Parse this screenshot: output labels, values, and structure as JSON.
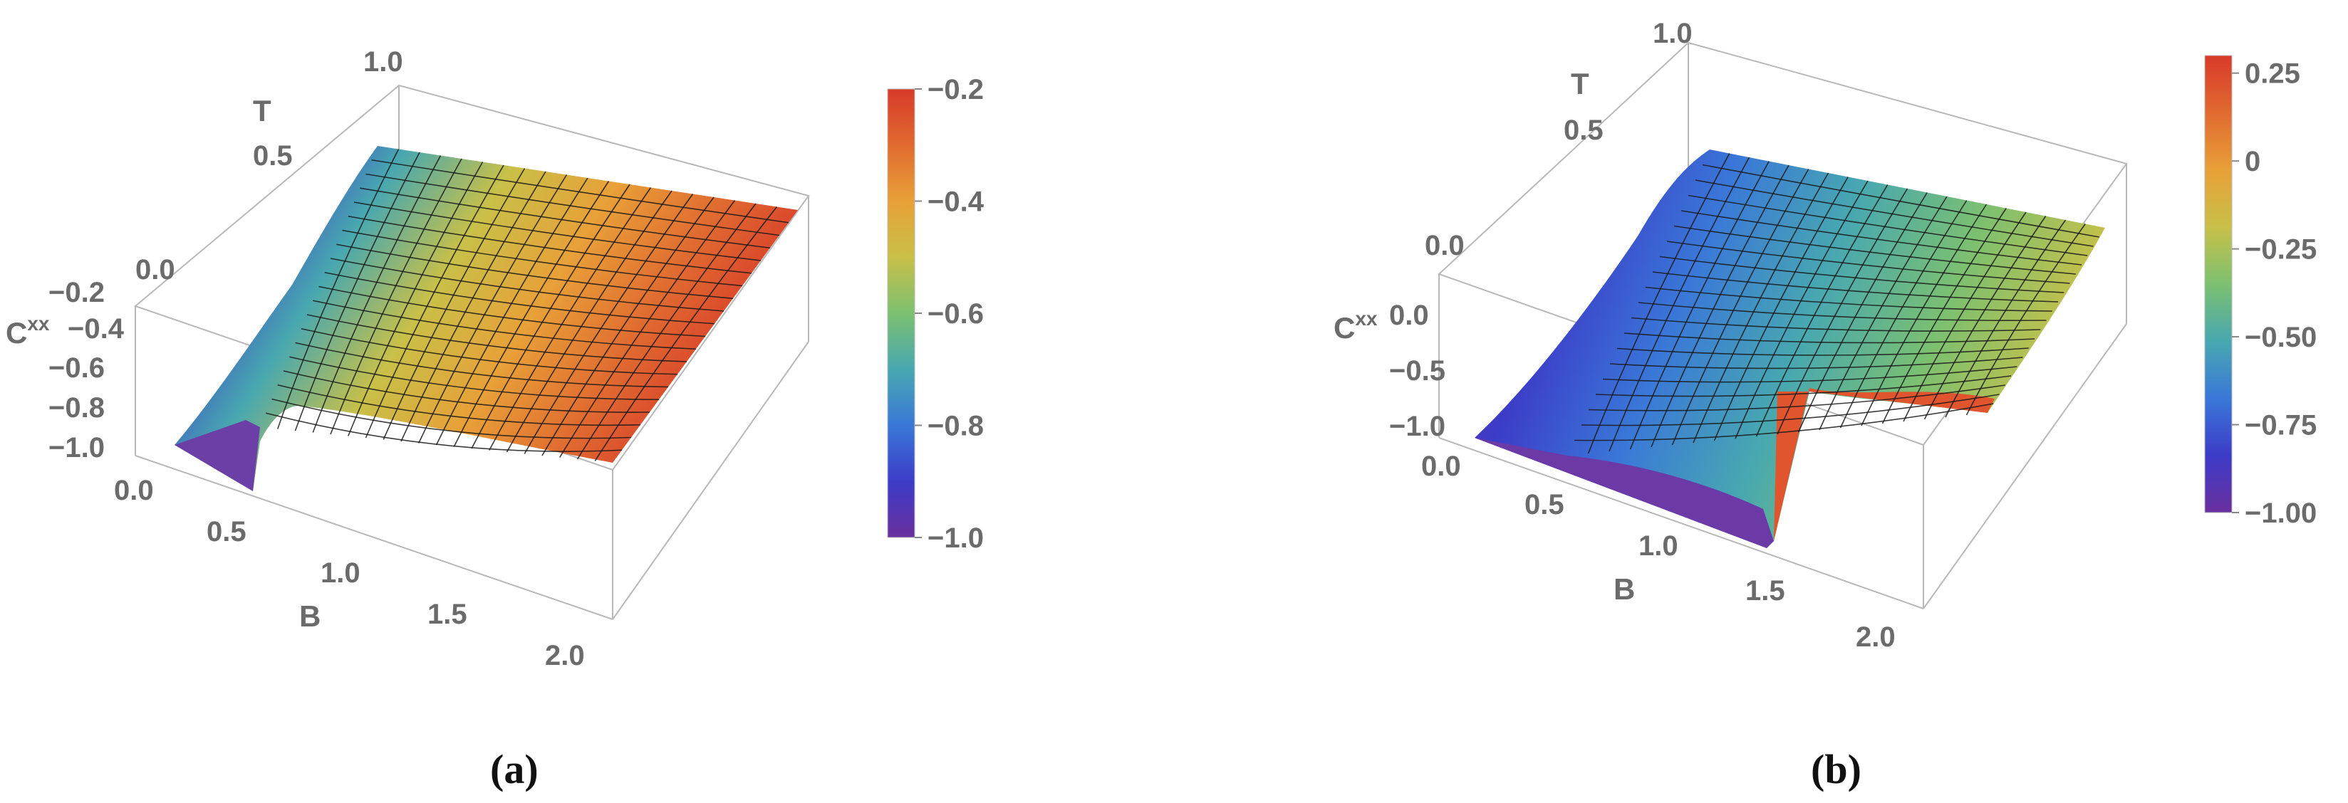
{
  "chart_data": [
    {
      "type": "surface3d",
      "panel_label": "(a)",
      "x_axis": {
        "label": "B",
        "ticks": [
          "0.0",
          "0.5",
          "1.0",
          "1.5",
          "2.0"
        ],
        "range": [
          0,
          2
        ]
      },
      "y_axis": {
        "label": "T",
        "ticks": [
          "0.0",
          "0.5",
          "1.0"
        ],
        "range": [
          0,
          1
        ]
      },
      "z_axis": {
        "label_main": "C",
        "label_sup": "xx",
        "ticks": [
          "-1.0",
          "-0.8",
          "-0.6",
          "-0.4",
          "-0.2"
        ],
        "range": [
          -1.0,
          -0.2
        ]
      },
      "colorbar": {
        "ticks": [
          "-1.0",
          "-0.8",
          "-0.6",
          "-0.4",
          "-0.2"
        ],
        "range": [
          -1.0,
          -0.2
        ],
        "colors": [
          "#6a2f9e",
          "#3c3cc8",
          "#3a78d8",
          "#48a8b0",
          "#7cc070",
          "#c8c048",
          "#e8a038",
          "#e06a30",
          "#d83a2a"
        ]
      },
      "features": {
        "singularity_B": 0.55,
        "min_value": -1.0,
        "max_value": -0.2
      }
    },
    {
      "type": "surface3d",
      "panel_label": "(b)",
      "x_axis": {
        "label": "B",
        "ticks": [
          "0.5",
          "1.0",
          "1.5",
          "2.0"
        ],
        "range": [
          0,
          2
        ]
      },
      "y_axis": {
        "label": "T",
        "ticks": [
          "0.0",
          "0.5",
          "1.0"
        ],
        "range": [
          0,
          1
        ]
      },
      "z_axis": {
        "label_main": "C",
        "label_sup": "xx",
        "ticks": [
          "-1.0",
          "-0.5",
          "0.0"
        ],
        "extra_tick": "0.0",
        "range": [
          -1.0,
          0.25
        ]
      },
      "colorbar": {
        "ticks": [
          "-1.00",
          "-0.75",
          "-0.50",
          "-0.25",
          "0",
          "0.25"
        ],
        "range": [
          -1.0,
          0.3
        ],
        "colors": [
          "#6a2f9e",
          "#3c3cc8",
          "#3a78d8",
          "#48a8b0",
          "#7cc070",
          "#c8c048",
          "#e8a038",
          "#e06a30",
          "#d83a2a"
        ]
      },
      "features": {
        "singularity_B": 1.4,
        "min_value": -1.0,
        "max_value": 0.3
      }
    }
  ]
}
